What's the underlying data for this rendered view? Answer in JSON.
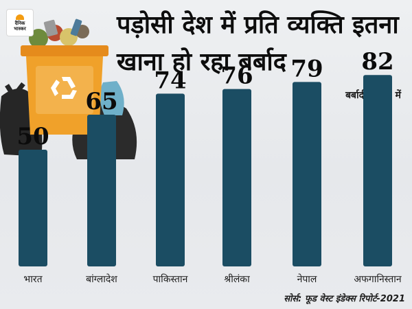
{
  "brand": {
    "logo_line1": "दैनिक",
    "logo_line2": "भास्कर"
  },
  "title": "पड़ोसी देश में प्रति व्यक्ति इतना खाना हो रहा बर्बाद",
  "unit_label": "बर्बादी (kg) में",
  "source": "सोर्स: फूड वेस्ट इंडेक्स रिपोर्ट-2021",
  "colors": {
    "bar": "#1b4d63",
    "bin": "#f0a12a",
    "bag": "#2b2b2b"
  },
  "icons": [
    "recycle-icon",
    "trash-bin-icon",
    "garbage-bag-icon"
  ],
  "chart_data": {
    "type": "bar",
    "categories": [
      "भारत",
      "बांग्लादेश",
      "पाकिस्तान",
      "श्रीलंका",
      "नेपाल",
      "अफगानिस्तान"
    ],
    "values": [
      50,
      65,
      74,
      76,
      79,
      82
    ],
    "ylabel": "बर्बादी (kg) में",
    "ylim": [
      0,
      100
    ],
    "grid": false,
    "data_labels": true
  }
}
